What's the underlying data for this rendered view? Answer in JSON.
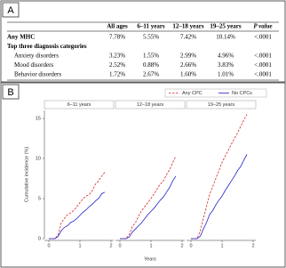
{
  "panel_a": {
    "label": "A",
    "table": {
      "header": [
        "All ages",
        "6–11 years",
        "12–18 years",
        "19–25 years",
        "P value"
      ],
      "rows": [
        {
          "label": "Any MHC",
          "bold": true,
          "cells": [
            "7.78%",
            "5.55%",
            "7.42%",
            "10.14%",
            "<.0001"
          ]
        },
        {
          "label": "Top three diagnosis categories",
          "bold": true,
          "cells": []
        },
        {
          "label": "Anxiety disorders",
          "bold": false,
          "cells": [
            "3.23%",
            "1.55%",
            "2.99%",
            "4.96%",
            "<.0001"
          ]
        },
        {
          "label": "Mood disorders",
          "bold": false,
          "cells": [
            "2.52%",
            "0.88%",
            "2.66%",
            "3.83%",
            "<.0001"
          ]
        },
        {
          "label": "Behavior disorders",
          "bold": false,
          "cells": [
            "1.72%",
            "2.67%",
            "1.60%",
            "1.01%",
            "<.0001"
          ]
        }
      ]
    }
  },
  "panel_b": {
    "label": "B"
  },
  "chart_data": {
    "type": "line",
    "xlabel": "Years",
    "ylabel": "Cumulative incidence (%)",
    "legend": "top-right",
    "xlim": [
      0,
      2
    ],
    "xticks": [
      0,
      1,
      2
    ],
    "ylim": [
      0,
      16
    ],
    "yticks": [
      0,
      5,
      10,
      15
    ],
    "series": [
      {
        "name": "Any CPC",
        "color": "#d62728",
        "dashed": true
      },
      {
        "name": "No CPCs",
        "color": "#2222c8",
        "dashed": false
      }
    ],
    "facets": [
      {
        "title": "6–11 years",
        "x": [
          0,
          0.1,
          0.2,
          0.3,
          0.4,
          0.5,
          0.6,
          0.7,
          0.8,
          0.9,
          1.0,
          1.1,
          1.2,
          1.3,
          1.4,
          1.5,
          1.6,
          1.7,
          1.8
        ],
        "series": [
          {
            "values": [
              0,
              0,
              0,
              0.5,
              2,
              2.5,
              3,
              3.2,
              3.5,
              4,
              4.5,
              5,
              5.3,
              5.5,
              6,
              6.8,
              7.2,
              7.8,
              8.3
            ]
          },
          {
            "values": [
              0,
              0,
              0,
              0.3,
              1,
              1.4,
              1.6,
              2,
              2.2,
              2.5,
              2.9,
              3.3,
              3.6,
              4,
              4.3,
              4.7,
              5,
              5.6,
              5.8
            ]
          }
        ]
      },
      {
        "title": "12–18 years",
        "x": [
          0,
          0.1,
          0.2,
          0.3,
          0.4,
          0.5,
          0.6,
          0.7,
          0.8,
          0.9,
          1.0,
          1.1,
          1.2,
          1.3,
          1.4,
          1.5,
          1.6,
          1.7,
          1.8
        ],
        "series": [
          {
            "values": [
              0,
              0,
              0,
              0.5,
              1.5,
              2,
              2.8,
              3.5,
              4,
              4.5,
              5,
              5.6,
              6.2,
              6.8,
              7.2,
              8,
              8.6,
              9.5,
              10.3
            ]
          },
          {
            "values": [
              0,
              0,
              0,
              0.2,
              0.8,
              1.2,
              1.6,
              2,
              2.5,
              3,
              3.4,
              3.8,
              4.3,
              4.8,
              5.2,
              5.8,
              6.4,
              7.2,
              7.8
            ]
          }
        ]
      },
      {
        "title": "19–25 years",
        "x": [
          0,
          0.1,
          0.2,
          0.3,
          0.4,
          0.5,
          0.6,
          0.7,
          0.8,
          0.9,
          1.0,
          1.1,
          1.2,
          1.3,
          1.4,
          1.5,
          1.6,
          1.7,
          1.8
        ],
        "series": [
          {
            "values": [
              0,
              0,
              0,
              1,
              2.5,
              4,
              5.5,
              6.5,
              7.5,
              8.5,
              9.5,
              10.3,
              11,
              11.8,
              12.5,
              13.2,
              14,
              14.8,
              15.5
            ]
          },
          {
            "values": [
              0,
              0,
              0,
              0.3,
              1.2,
              2,
              3,
              3.5,
              4.2,
              4.8,
              5.3,
              6,
              6.6,
              7.2,
              7.8,
              8.5,
              9,
              9.8,
              10.5
            ]
          }
        ]
      }
    ]
  }
}
